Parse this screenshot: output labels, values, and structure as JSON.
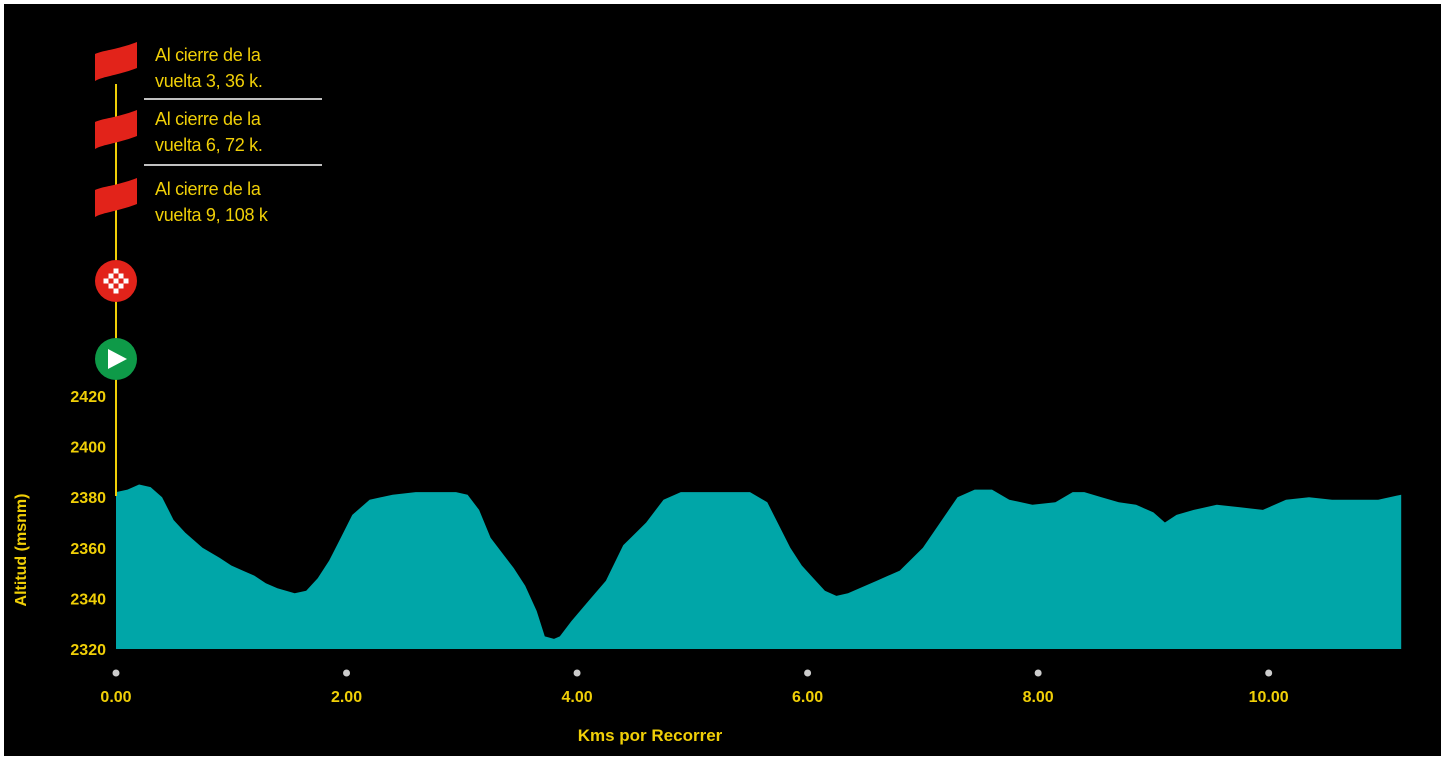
{
  "chart_data": {
    "type": "area",
    "xlabel": "Kms por Recorrer",
    "ylabel": "Altitud (msnm)",
    "xlim": [
      0,
      11.2
    ],
    "ylim": [
      2320,
      2420
    ],
    "x_ticks": [
      0,
      2,
      4,
      6,
      8,
      10
    ],
    "x_tick_labels": [
      "0.00",
      "2.00",
      "4.00",
      "6.00",
      "8.00",
      "10.00"
    ],
    "y_ticks": [
      2320,
      2340,
      2360,
      2380,
      2400,
      2420
    ],
    "y_tick_labels": [
      "2320",
      "2340",
      "2360",
      "2380",
      "2400",
      "2420"
    ],
    "grid": false,
    "series": [
      {
        "x": [
          0.0,
          0.1,
          0.2,
          0.3,
          0.4,
          0.5,
          0.6,
          0.75,
          0.9,
          1.0,
          1.1,
          1.2,
          1.3,
          1.4,
          1.55,
          1.65,
          1.75,
          1.85,
          1.95,
          2.05,
          2.2,
          2.4,
          2.6,
          2.8,
          2.95,
          3.05,
          3.15,
          3.25,
          3.35,
          3.45,
          3.55,
          3.65,
          3.72,
          3.8,
          3.85,
          3.95,
          4.1,
          4.25,
          4.4,
          4.6,
          4.75,
          4.9,
          5.1,
          5.3,
          5.5,
          5.65,
          5.75,
          5.85,
          5.95,
          6.05,
          6.15,
          6.25,
          6.35,
          6.45,
          6.6,
          6.8,
          7.0,
          7.15,
          7.3,
          7.45,
          7.6,
          7.75,
          7.95,
          8.15,
          8.3,
          8.4,
          8.55,
          8.7,
          8.85,
          9.0,
          9.1,
          9.2,
          9.35,
          9.55,
          9.75,
          9.95,
          10.15,
          10.35,
          10.55,
          10.75,
          10.95,
          11.15
        ],
        "y": [
          2382,
          2383,
          2385,
          2384,
          2380,
          2371,
          2366,
          2360,
          2356,
          2353,
          2351,
          2349,
          2346,
          2344,
          2342,
          2343,
          2348,
          2355,
          2364,
          2373,
          2379,
          2381,
          2382,
          2382,
          2382,
          2381,
          2375,
          2364,
          2358,
          2352,
          2345,
          2335,
          2325,
          2324,
          2325,
          2331,
          2339,
          2347,
          2361,
          2370,
          2379,
          2382,
          2382,
          2382,
          2382,
          2378,
          2369,
          2360,
          2353,
          2348,
          2343,
          2341,
          2342,
          2344,
          2347,
          2351,
          2360,
          2370,
          2380,
          2383,
          2383,
          2379,
          2377,
          2378,
          2382,
          2382,
          2380,
          2378,
          2377,
          2374,
          2370,
          2373,
          2375,
          2377,
          2376,
          2375,
          2379,
          2380,
          2379,
          2379,
          2379,
          2381
        ]
      }
    ]
  },
  "legend": {
    "items": [
      {
        "line1": "Al cierre de la",
        "line2": "vuelta 3, 36 k."
      },
      {
        "line1": "Al cierre de la",
        "line2": "vuelta 6, 72  k."
      },
      {
        "line1": "Al cierre de la",
        "line2": "vuelta 9, 108 k"
      }
    ],
    "markers": [
      "red-flag-icon",
      "red-flag-icon",
      "red-flag-icon",
      "checkered-flag-icon",
      "green-start-icon"
    ]
  },
  "colors": {
    "background": "#000000",
    "area_fill": "#00a6a8",
    "text": "#f0cf07",
    "flag": "#e2231a",
    "finish_circle": "#e2231a",
    "start_circle": "#0e9a48",
    "divider": "#ffffff",
    "tick_dot": "#cccccc"
  }
}
